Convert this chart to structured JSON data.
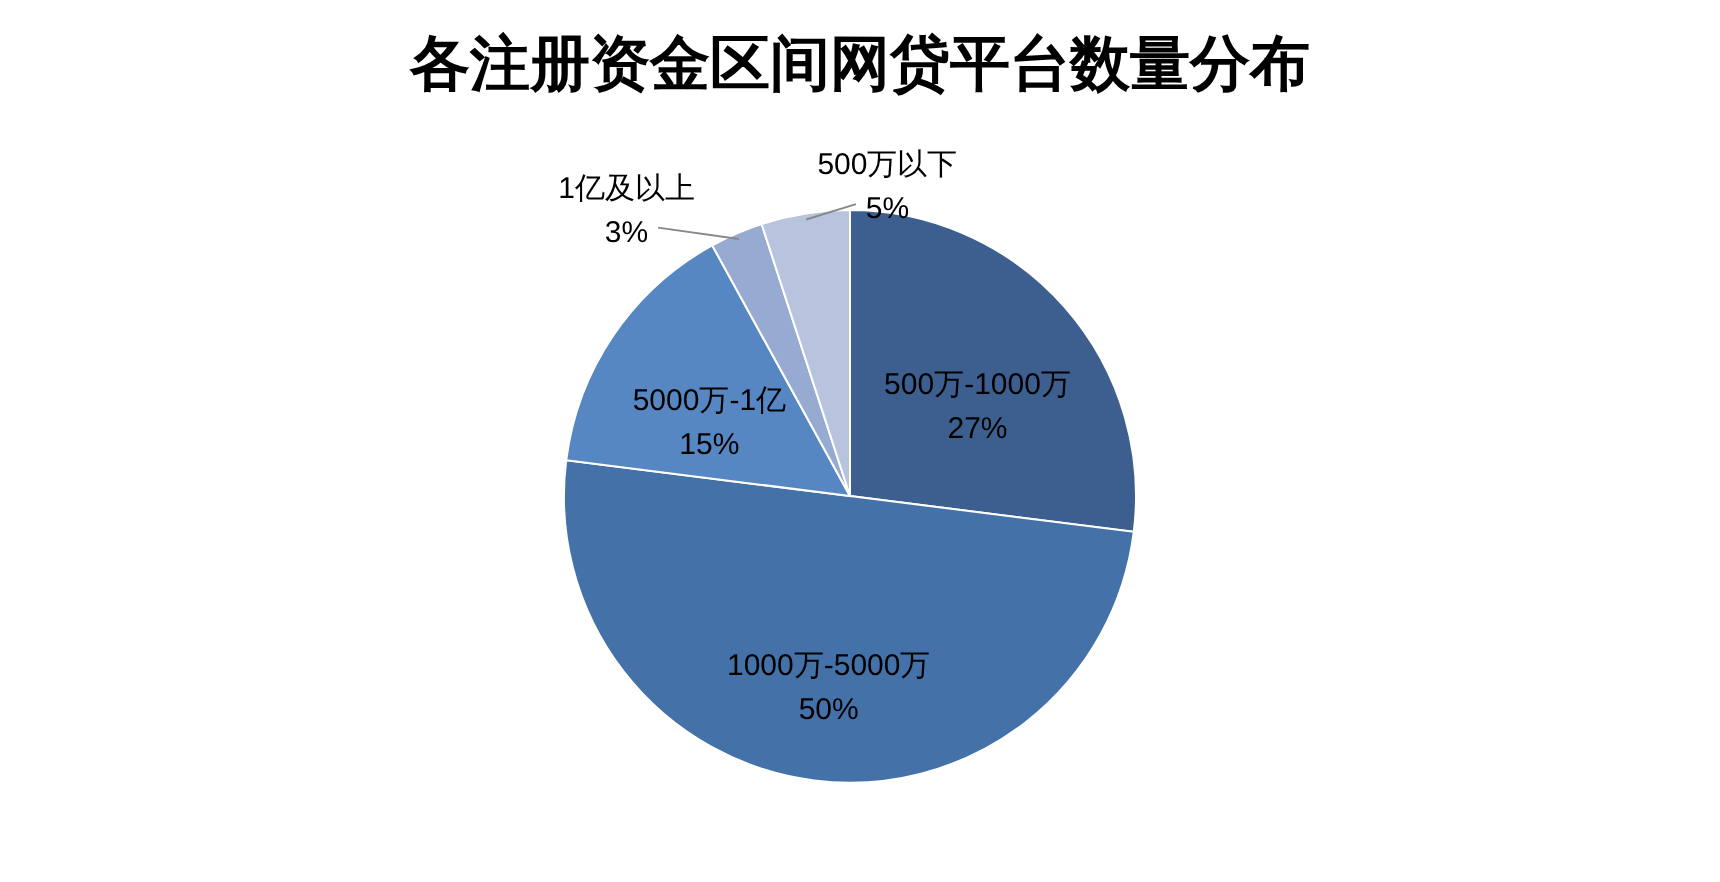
{
  "chart_data": {
    "type": "pie",
    "title": "各注册资金区间网贷平台数量分布",
    "categories": [
      "500万-1000万",
      "1000万-5000万",
      "5000万-1亿",
      "1亿及以上",
      "500万以下"
    ],
    "values": [
      27,
      50,
      15,
      3,
      5
    ],
    "value_labels": [
      "27%",
      "50%",
      "15%",
      "3%",
      "5%"
    ],
    "colors": [
      "#3d5f8f",
      "#4472a8",
      "#5687c2",
      "#97aad2",
      "#b8c3de"
    ]
  }
}
